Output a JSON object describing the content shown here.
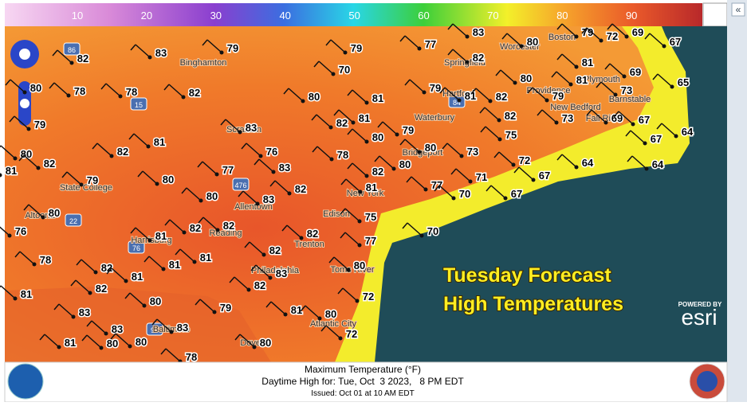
{
  "colorbar": {
    "labels": [
      10,
      20,
      30,
      40,
      50,
      60,
      70,
      80,
      90
    ]
  },
  "map": {
    "temperatures": [
      83,
      77,
      80,
      79,
      72,
      69,
      67,
      82,
      83,
      79,
      79,
      82,
      81,
      69,
      65,
      78,
      78,
      82,
      70,
      80,
      81,
      73,
      80,
      79,
      80,
      81,
      79,
      81,
      82,
      79,
      82,
      73,
      69,
      67,
      64,
      83,
      82,
      81,
      79,
      75,
      81,
      82,
      76,
      78,
      80,
      80,
      73,
      67,
      80,
      82,
      81,
      77,
      83,
      82,
      80,
      72,
      64,
      64,
      79,
      80,
      80,
      83,
      82,
      81,
      77,
      71,
      67,
      70,
      67,
      80,
      82,
      82,
      75,
      81,
      76,
      82,
      77,
      70,
      78,
      82,
      81,
      81,
      82,
      80,
      81,
      83,
      82,
      82,
      81,
      80,
      79,
      72,
      83,
      81,
      80,
      83,
      83,
      72,
      81,
      80,
      80,
      80,
      78
    ],
    "places": [
      "Binghamton",
      "Scranton",
      "State College",
      "Altoona",
      "Harrisburg",
      "Reading",
      "Allentown",
      "Philadelphia",
      "Trenton",
      "Edison",
      "New York",
      "Toms River",
      "Atlantic City",
      "Baltimore",
      "Dover",
      "Springfield",
      "Worcester",
      "Boston",
      "Plymouth",
      "Hartford",
      "Providence",
      "New Bedford",
      "Barnstable",
      "Waterbury",
      "Bridgeport",
      "Fall River"
    ],
    "shields": [
      "86",
      "15",
      "476",
      "22",
      "76",
      "84",
      "95"
    ]
  },
  "overlay": {
    "line1": "Tuesday Forecast",
    "line2": "High Temperatures",
    "powered_by": "POWERED BY",
    "brand": "esri"
  },
  "footer": {
    "line1": "Maximum Temperature (°F)",
    "line2": "Daytime High for: Tue, Oct  3 2023,   8 PM EDT",
    "line3": "Issued: Oct 01 at 10 AM EDT"
  },
  "sidebar": {
    "collapse": "«"
  }
}
